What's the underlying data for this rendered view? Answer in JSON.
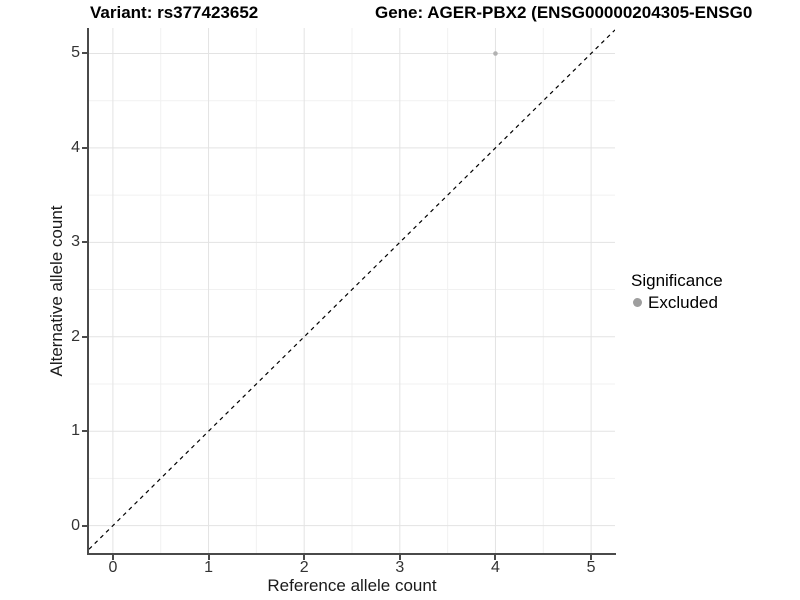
{
  "figure": {
    "background": "#ffffff"
  },
  "chart_data": {
    "type": "scatter",
    "titles": {
      "left": "Variant: rs377423652",
      "right": "Gene: AGER-PBX2 (ENSG00000204305-ENSG0"
    },
    "xlabel": "Reference allele count",
    "ylabel": "Alternative allele count",
    "xlim": [
      -0.25,
      5.25
    ],
    "ylim": [
      -0.29,
      5.27
    ],
    "x_ticks": [
      0,
      1,
      2,
      3,
      4,
      5
    ],
    "y_ticks": [
      0,
      1,
      2,
      3,
      4,
      5
    ],
    "x_minor": [
      0.5,
      1.5,
      2.5,
      3.5,
      4.5
    ],
    "y_minor": [
      0.5,
      1.5,
      2.5,
      3.5,
      4.5
    ],
    "grid": "on",
    "points": [
      {
        "x": 4,
        "y": 5,
        "series": "Excluded"
      }
    ],
    "reference_line": {
      "equation": "y = x",
      "style": "dashed",
      "color": "#000000"
    },
    "legend": {
      "position": "right",
      "title": "Significance",
      "items": [
        {
          "label": "Excluded",
          "color": "#9e9e9e"
        }
      ]
    },
    "style": {
      "point_color": "#b2b2b2",
      "point_radius": 2.3,
      "grid_major_color": "#e3e3e3",
      "grid_minor_color": "#f1f1f1",
      "axis_color": "#4a4a4a"
    }
  }
}
